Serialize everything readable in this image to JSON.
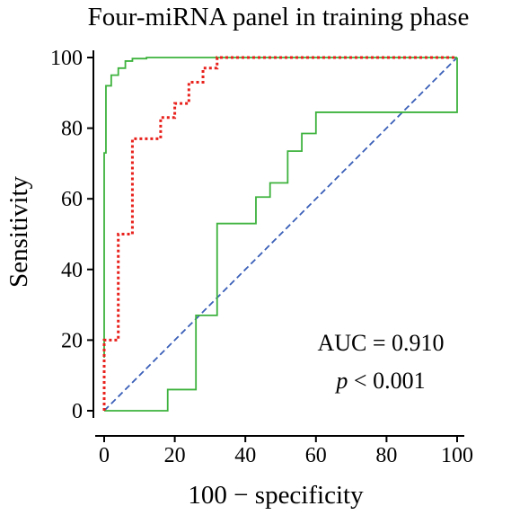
{
  "chart_data": {
    "type": "line",
    "title": "Four-miRNA panel in training phase",
    "xlabel": "100 − specificity",
    "ylabel": "Sensitivity",
    "xlim": [
      0,
      100
    ],
    "ylim": [
      0,
      100
    ],
    "x_ticks": [
      "0",
      "20",
      "40",
      "60",
      "80",
      "100"
    ],
    "y_ticks": [
      "0",
      "20",
      "40",
      "60",
      "80",
      "100"
    ],
    "grid": false,
    "annotations": {
      "auc": "AUC = 0.910",
      "p_symbol": "p",
      "p_rest": " < 0.001"
    },
    "series": [
      {
        "key": "roc",
        "color": "#e8211c",
        "style": "dotted",
        "x": [
          0,
          0,
          4,
          4,
          8,
          8,
          16,
          16,
          20,
          20,
          24,
          24,
          28,
          28,
          32,
          32,
          100
        ],
        "y": [
          0,
          20,
          20,
          50,
          50,
          77,
          77,
          83,
          83,
          87,
          87,
          93,
          93,
          97,
          97,
          100,
          100
        ]
      },
      {
        "key": "ci-upper",
        "color": "#3db23d",
        "style": "solid",
        "x": [
          0,
          0,
          0.5,
          0.5,
          2,
          2,
          4,
          4,
          6,
          6,
          8,
          8,
          12,
          12,
          100
        ],
        "y": [
          15,
          73,
          73,
          92,
          92,
          95,
          95,
          97,
          97,
          99,
          99,
          99.7,
          99.7,
          100,
          100
        ]
      },
      {
        "key": "ci-lower",
        "color": "#3db23d",
        "style": "solid",
        "x": [
          0,
          18,
          18,
          26,
          26,
          32,
          32,
          43,
          43,
          47,
          47,
          52,
          52,
          56,
          56,
          60,
          60,
          100,
          100
        ],
        "y": [
          0,
          0,
          6,
          6,
          27,
          27,
          53,
          53,
          60.5,
          60.5,
          64.5,
          64.5,
          73.5,
          73.5,
          78.5,
          78.5,
          84.5,
          84.5,
          100
        ]
      },
      {
        "key": "reference",
        "color": "#3a5fb8",
        "style": "dashed",
        "x": [
          0,
          100
        ],
        "y": [
          0,
          100
        ]
      }
    ]
  }
}
